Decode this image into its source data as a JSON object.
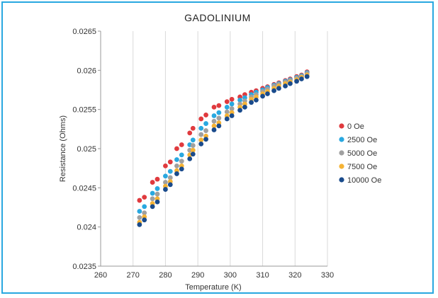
{
  "chart_data": {
    "type": "scatter",
    "title": "GADOLINIUM",
    "xlabel": "Temperature (K)",
    "ylabel": "Resistance (Ohms)",
    "xlim": [
      260,
      330
    ],
    "ylim": [
      0.0235,
      0.0265
    ],
    "xticks": [
      "260",
      "270",
      "280",
      "290",
      "300",
      "310",
      "320",
      "330"
    ],
    "yticks": [
      "0.0235",
      "0.024",
      "0.0245",
      "0.025",
      "0.0255",
      "0.026",
      "0.0265"
    ],
    "grid": "vertical",
    "legend_position": "right",
    "x": [
      272,
      273.5,
      276,
      277.5,
      280,
      281.5,
      283.5,
      285,
      287.5,
      288.5,
      291,
      292.5,
      295,
      296.5,
      299,
      300.5,
      303,
      304.5,
      306.5,
      308,
      310,
      311.5,
      313.5,
      315,
      317,
      318.5,
      320.5,
      322,
      323.7
    ],
    "series": [
      {
        "name": "0 Oe",
        "color": "#e03a3e",
        "values": [
          0.02434,
          0.02438,
          0.02457,
          0.02461,
          0.02478,
          0.02483,
          0.025,
          0.02505,
          0.0252,
          0.02526,
          0.02538,
          0.02543,
          0.02553,
          0.02555,
          0.0256,
          0.02563,
          0.02566,
          0.02569,
          0.02572,
          0.02574,
          0.02577,
          0.02579,
          0.02582,
          0.02584,
          0.02587,
          0.02589,
          0.02592,
          0.02594,
          0.02598
        ]
      },
      {
        "name": "2500 Oe",
        "color": "#29a8e0",
        "values": [
          0.0242,
          0.02426,
          0.02443,
          0.02449,
          0.02465,
          0.02471,
          0.02486,
          0.02492,
          0.02505,
          0.02511,
          0.02526,
          0.02532,
          0.02542,
          0.02546,
          0.02553,
          0.02557,
          0.02562,
          0.02565,
          0.02569,
          0.02572,
          0.02575,
          0.02578,
          0.02581,
          0.02583,
          0.02586,
          0.02588,
          0.02591,
          0.02593,
          0.02597
        ]
      },
      {
        "name": "5000 Oe",
        "color": "#a0a0a0",
        "values": [
          0.02412,
          0.02418,
          0.02436,
          0.02442,
          0.02457,
          0.02463,
          0.02478,
          0.02484,
          0.02498,
          0.02504,
          0.02518,
          0.02523,
          0.02535,
          0.02539,
          0.02547,
          0.02551,
          0.02557,
          0.02561,
          0.02566,
          0.02569,
          0.02573,
          0.02576,
          0.0258,
          0.02582,
          0.02585,
          0.02587,
          0.0259,
          0.02592,
          0.02596
        ]
      },
      {
        "name": "7500 Oe",
        "color": "#f5b335",
        "values": [
          0.02406,
          0.02413,
          0.0243,
          0.02436,
          0.02452,
          0.02458,
          0.02472,
          0.02478,
          0.02492,
          0.02498,
          0.02511,
          0.02516,
          0.02529,
          0.02533,
          0.02542,
          0.02546,
          0.02553,
          0.02557,
          0.02563,
          0.02566,
          0.0257,
          0.02573,
          0.02577,
          0.0258,
          0.02583,
          0.02585,
          0.02588,
          0.02591,
          0.02594
        ]
      },
      {
        "name": "10000 Oe",
        "color": "#1a4b8c",
        "values": [
          0.02403,
          0.02409,
          0.02426,
          0.02432,
          0.02448,
          0.02454,
          0.02468,
          0.02474,
          0.02487,
          0.02493,
          0.02506,
          0.02512,
          0.02524,
          0.02529,
          0.02538,
          0.02542,
          0.02549,
          0.02553,
          0.02559,
          0.02562,
          0.02567,
          0.0257,
          0.02574,
          0.02577,
          0.0258,
          0.02583,
          0.02586,
          0.02589,
          0.02592
        ]
      }
    ]
  }
}
